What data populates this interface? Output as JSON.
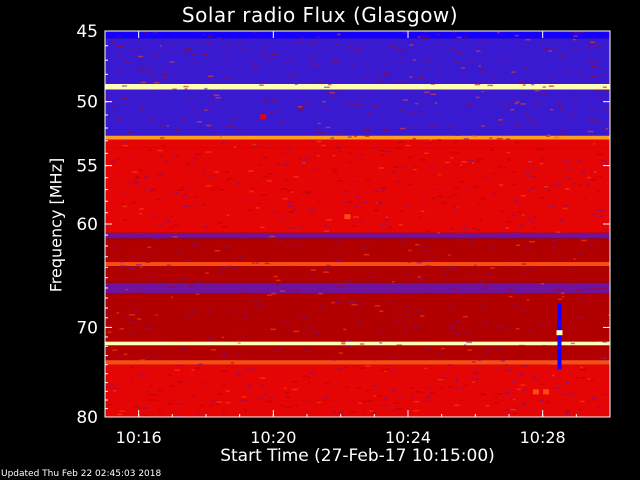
{
  "chart_data": {
    "type": "heatmap",
    "title": "Solar radio Flux (Glasgow)",
    "xlabel": "Start Time (27-Feb-17 10:15:00)",
    "ylabel": "Frequency [MHz]",
    "x_ticks": [
      {
        "minute": 1,
        "label": "10:16"
      },
      {
        "minute": 5,
        "label": "10:20"
      },
      {
        "minute": 9,
        "label": "10:24"
      },
      {
        "minute": 13,
        "label": "10:28"
      }
    ],
    "x_range_minutes": [
      0,
      15
    ],
    "y_ticks": [
      {
        "mhz": 45,
        "label": "45"
      },
      {
        "mhz": 50,
        "label": "50"
      },
      {
        "mhz": 55,
        "label": "55"
      },
      {
        "mhz": 60,
        "label": "60"
      },
      {
        "mhz": 70,
        "label": "70"
      },
      {
        "mhz": 80,
        "label": "80"
      }
    ],
    "y_scale": "log",
    "y_range_mhz": [
      45,
      80
    ],
    "colormap": [
      "#1500ff",
      "#3a1ad0",
      "#70129a",
      "#b20000",
      "#e60505",
      "#ff4a14",
      "#ff9f1f",
      "#ffffb4"
    ],
    "frequency_bands": [
      {
        "from_mhz": 45.0,
        "to_mhz": 45.5,
        "level": 0.0
      },
      {
        "from_mhz": 45.5,
        "to_mhz": 48.7,
        "level": 0.12
      },
      {
        "from_mhz": 48.7,
        "to_mhz": 49.1,
        "level": 0.95
      },
      {
        "from_mhz": 49.1,
        "to_mhz": 52.6,
        "level": 0.14
      },
      {
        "from_mhz": 52.6,
        "to_mhz": 52.9,
        "level": 0.9
      },
      {
        "from_mhz": 52.9,
        "to_mhz": 53.5,
        "level": 0.5
      },
      {
        "from_mhz": 53.5,
        "to_mhz": 60.8,
        "level": 0.55
      },
      {
        "from_mhz": 60.8,
        "to_mhz": 61.3,
        "level": 0.35
      },
      {
        "from_mhz": 61.3,
        "to_mhz": 63.5,
        "level": 0.48
      },
      {
        "from_mhz": 63.5,
        "to_mhz": 63.9,
        "level": 0.75
      },
      {
        "from_mhz": 63.9,
        "to_mhz": 65.5,
        "level": 0.45
      },
      {
        "from_mhz": 65.5,
        "to_mhz": 66.5,
        "level": 0.3
      },
      {
        "from_mhz": 66.5,
        "to_mhz": 71.5,
        "level": 0.4
      },
      {
        "from_mhz": 71.5,
        "to_mhz": 71.9,
        "level": 0.95
      },
      {
        "from_mhz": 71.9,
        "to_mhz": 73.5,
        "level": 0.45
      },
      {
        "from_mhz": 73.5,
        "to_mhz": 74.0,
        "level": 0.65
      },
      {
        "from_mhz": 74.0,
        "to_mhz": 78.0,
        "level": 0.5
      },
      {
        "from_mhz": 78.0,
        "to_mhz": 80.0,
        "level": 0.55
      }
    ],
    "interference_blips": [
      {
        "minute": 4.7,
        "mhz": 51.1,
        "level": 0.55
      },
      {
        "minute": 7.2,
        "mhz": 59.3,
        "level": 0.75
      },
      {
        "minute": 12.8,
        "mhz": 77.0,
        "level": 0.7
      },
      {
        "minute": 13.1,
        "mhz": 77.0,
        "level": 0.7
      },
      {
        "minute": 13.5,
        "mhz": 70.5,
        "level": 1.0
      }
    ]
  },
  "footer_text": "Updated Thu Feb 22 02:45:03 2018"
}
